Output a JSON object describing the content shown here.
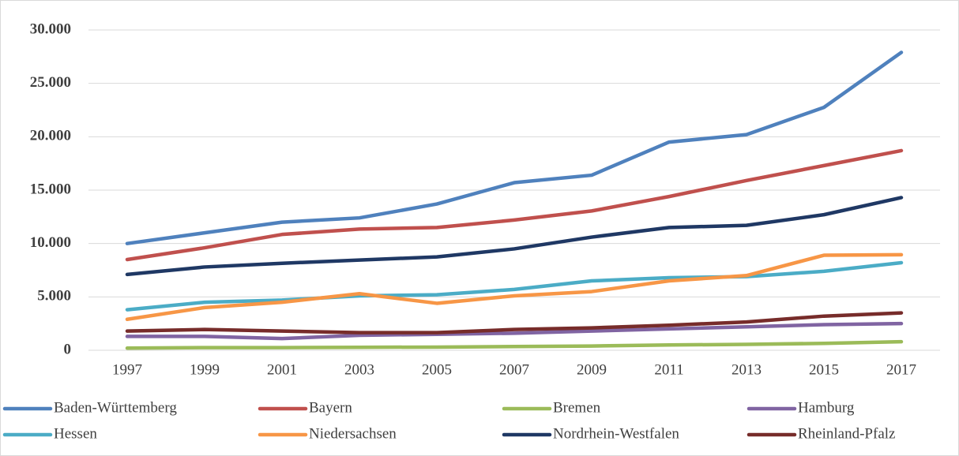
{
  "chart_data": {
    "type": "line",
    "categories": [
      "1997",
      "1999",
      "2001",
      "2003",
      "2005",
      "2007",
      "2009",
      "2011",
      "2013",
      "2015",
      "2017"
    ],
    "series": [
      {
        "name": "Baden-Württemberg",
        "color": "#4f81bd",
        "values": [
          10000,
          11000,
          12000,
          12400,
          13700,
          15700,
          16400,
          19500,
          20200,
          22750,
          27900
        ]
      },
      {
        "name": "Bayern",
        "color": "#c0504d",
        "values": [
          8500,
          9600,
          10850,
          11350,
          11500,
          12200,
          13050,
          14400,
          15900,
          17300,
          18700
        ]
      },
      {
        "name": "Bremen",
        "color": "#9bbb59",
        "values": [
          200,
          250,
          250,
          280,
          300,
          350,
          400,
          500,
          550,
          650,
          800
        ]
      },
      {
        "name": "Hamburg",
        "color": "#8064a2",
        "values": [
          1300,
          1300,
          1100,
          1400,
          1500,
          1600,
          1800,
          2000,
          2200,
          2400,
          2500
        ]
      },
      {
        "name": "Hessen",
        "color": "#4bacc6",
        "values": [
          3800,
          4500,
          4700,
          5100,
          5200,
          5700,
          6500,
          6800,
          6900,
          7400,
          8200
        ]
      },
      {
        "name": "Niedersachsen",
        "color": "#f79646",
        "values": [
          2900,
          4000,
          4500,
          5300,
          4400,
          5100,
          5500,
          6500,
          7000,
          8900,
          8950
        ]
      },
      {
        "name": "Nordrhein-Westfalen",
        "color": "#1f3864",
        "values": [
          7100,
          7800,
          8150,
          8450,
          8750,
          9500,
          10600,
          11500,
          11700,
          12700,
          14300
        ]
      },
      {
        "name": "Rheinland-Pfalz",
        "color": "#772c2a",
        "values": [
          1800,
          1950,
          1800,
          1650,
          1650,
          1950,
          2100,
          2350,
          2650,
          3200,
          3500
        ]
      }
    ],
    "ylim": [
      0,
      30000
    ],
    "yticks": [
      0,
      {
        "value": 5000,
        "label": "5.000"
      },
      {
        "value": 10000,
        "label": "10.000"
      },
      {
        "value": 15000,
        "label": "15.000"
      },
      {
        "value": 20000,
        "label": "20.000"
      },
      {
        "value": 25000,
        "label": "25.000"
      },
      {
        "value": 30000,
        "label": "30.000"
      }
    ],
    "grid": true,
    "legend": "bottom"
  }
}
